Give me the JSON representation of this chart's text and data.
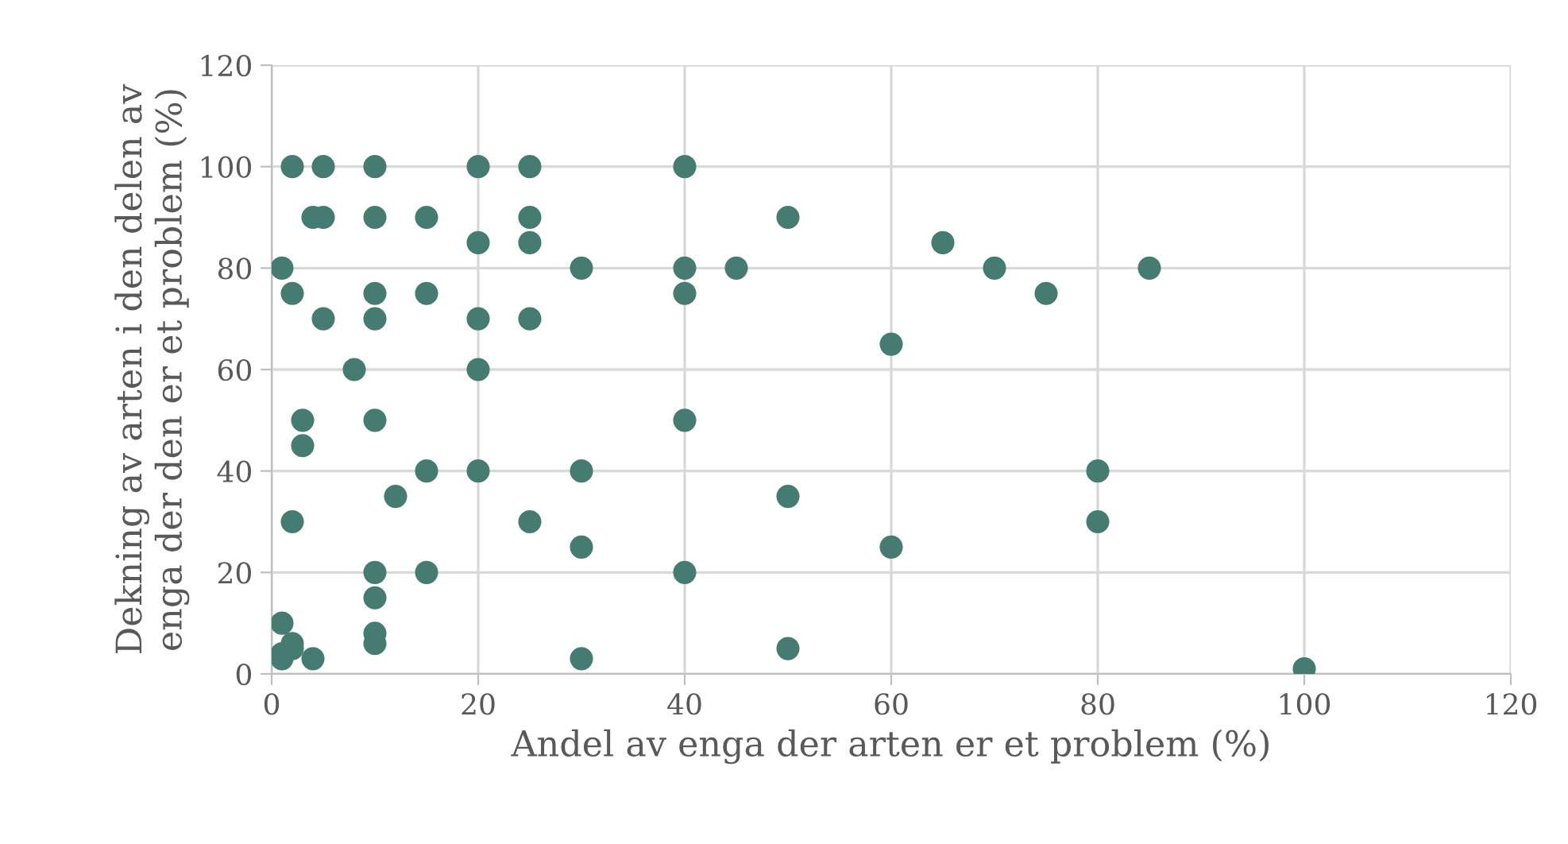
{
  "chart_data": {
    "type": "scatter",
    "xlabel": "Andel av enga der arten er et problem (%)",
    "ylabel": "Dekning av arten i den delen av\nenga der den er et problem (%)",
    "x": [
      1,
      1,
      1,
      1,
      2,
      2,
      2,
      2,
      2,
      3,
      3,
      4,
      4,
      5,
      5,
      5,
      8,
      10,
      10,
      10,
      10,
      10,
      10,
      10,
      10,
      10,
      12,
      15,
      15,
      15,
      15,
      20,
      20,
      20,
      20,
      20,
      25,
      25,
      25,
      25,
      25,
      30,
      30,
      30,
      30,
      40,
      40,
      40,
      40,
      40,
      45,
      50,
      50,
      50,
      60,
      60,
      65,
      70,
      75,
      80,
      80,
      85,
      100
    ],
    "values": [
      80,
      10,
      3,
      4,
      100,
      75,
      30,
      6,
      5,
      50,
      45,
      90,
      3,
      100,
      90,
      70,
      60,
      100,
      90,
      75,
      70,
      50,
      20,
      15,
      8,
      6,
      35,
      90,
      75,
      40,
      20,
      100,
      85,
      70,
      60,
      40,
      100,
      90,
      85,
      70,
      30,
      80,
      40,
      25,
      3,
      100,
      80,
      75,
      50,
      20,
      80,
      90,
      35,
      5,
      65,
      25,
      85,
      80,
      75,
      40,
      30,
      80,
      1
    ],
    "color": "#457b70",
    "marker": "circle",
    "xlim": [
      0,
      120
    ],
    "ylim": [
      0,
      120
    ],
    "xticks": [
      0,
      20,
      40,
      60,
      80,
      100,
      120
    ],
    "yticks": [
      0,
      20,
      40,
      60,
      80,
      100,
      120
    ],
    "grid": true
  }
}
